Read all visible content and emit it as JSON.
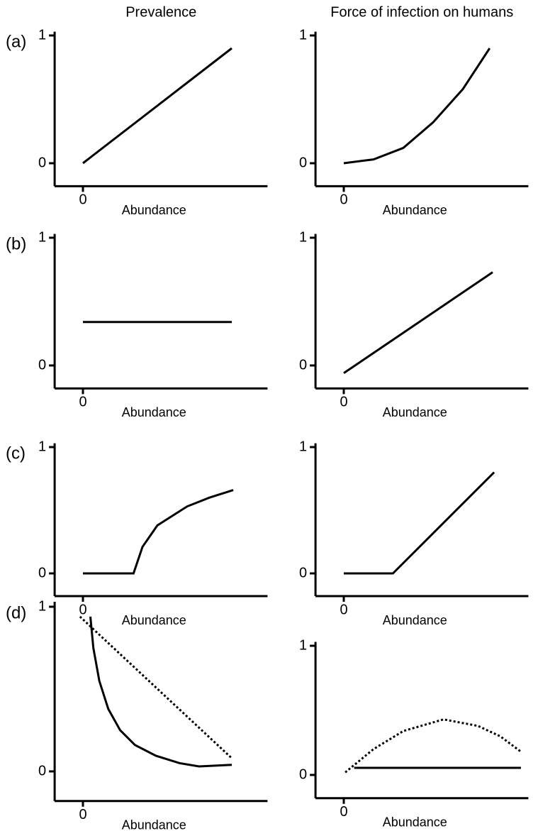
{
  "chart_data": [
    {
      "type": "line",
      "title": "Prevalence",
      "panel_label": "(a)",
      "xlabel": "Abundance",
      "xlim": [
        -0.19,
        1.24
      ],
      "ylim": [
        -0.18,
        1.03
      ],
      "xticks": [
        0
      ],
      "yticks": [
        0,
        1
      ],
      "series": [
        {
          "x": [
            0,
            1
          ],
          "values": [
            0,
            0.9
          ],
          "color": "#000000",
          "style": "solid"
        }
      ]
    },
    {
      "type": "line",
      "title": "Force of infection on humans",
      "xlabel": "Abundance",
      "xlim": [
        -0.19,
        1.24
      ],
      "ylim": [
        -0.18,
        1.03
      ],
      "xticks": [
        0
      ],
      "yticks": [
        0,
        1
      ],
      "series": [
        {
          "x": [
            0,
            0.2,
            0.4,
            0.6,
            0.8,
            0.98
          ],
          "values": [
            0,
            0.03,
            0.12,
            0.32,
            0.58,
            0.9
          ],
          "color": "#000000",
          "style": "solid"
        }
      ]
    },
    {
      "type": "line",
      "panel_label": "(b)",
      "xlabel": "Abundance",
      "xlim": [
        -0.19,
        1.24
      ],
      "ylim": [
        -0.18,
        1.03
      ],
      "xticks": [
        0
      ],
      "yticks": [
        0,
        1
      ],
      "series": [
        {
          "x": [
            0,
            1
          ],
          "values": [
            0.34,
            0.34
          ],
          "color": "#000000",
          "style": "solid"
        }
      ]
    },
    {
      "type": "line",
      "xlabel": "Abundance",
      "xlim": [
        -0.19,
        1.24
      ],
      "ylim": [
        -0.18,
        1.03
      ],
      "xticks": [
        0
      ],
      "yticks": [
        0,
        1
      ],
      "series": [
        {
          "x": [
            0,
            1
          ],
          "values": [
            -0.06,
            0.73
          ],
          "color": "#000000",
          "style": "solid"
        }
      ]
    },
    {
      "type": "line",
      "panel_label": "(c)",
      "xlabel": "Abundance",
      "xlim": [
        -0.19,
        1.24
      ],
      "ylim": [
        -0.18,
        1.03
      ],
      "xticks": [
        0
      ],
      "yticks": [
        0,
        1
      ],
      "series": [
        {
          "x": [
            0,
            0.34,
            0.4,
            0.5,
            0.7,
            0.85,
            1.01
          ],
          "values": [
            0,
            0,
            0.21,
            0.38,
            0.53,
            0.6,
            0.66
          ],
          "color": "#000000",
          "style": "solid"
        }
      ]
    },
    {
      "type": "line",
      "xlabel": "Abundance",
      "xlim": [
        -0.19,
        1.24
      ],
      "ylim": [
        -0.18,
        1.03
      ],
      "xticks": [
        0
      ],
      "yticks": [
        0,
        1
      ],
      "series": [
        {
          "x": [
            0,
            0.33,
            1.01
          ],
          "values": [
            0,
            0,
            0.8
          ],
          "color": "#000000",
          "style": "solid"
        }
      ]
    },
    {
      "type": "line",
      "panel_label": "(d)",
      "xlabel": "Abundance",
      "xlim": [
        -0.19,
        1.24
      ],
      "ylim": [
        -0.18,
        1.03
      ],
      "xticks": [
        0
      ],
      "yticks": [
        0,
        1
      ],
      "series": [
        {
          "x": [
            0.05,
            0.07,
            0.11,
            0.17,
            0.25,
            0.35,
            0.49,
            0.65,
            0.78,
            1.0
          ],
          "values": [
            0.94,
            0.75,
            0.55,
            0.38,
            0.25,
            0.16,
            0.095,
            0.05,
            0.03,
            0.04
          ],
          "color": "#000000",
          "style": "solid"
        },
        {
          "x": [
            -0.02,
            1.0
          ],
          "values": [
            0.94,
            0.08
          ],
          "color": "#000000",
          "style": "dotted"
        }
      ]
    },
    {
      "type": "line",
      "xlabel": "Abundance",
      "xlim": [
        -0.19,
        1.24
      ],
      "ylim": [
        -0.18,
        1.03
      ],
      "xticks": [
        0
      ],
      "yticks": [
        0,
        1
      ],
      "series": [
        {
          "x": [
            0.07,
            1.19
          ],
          "values": [
            0.055,
            0.055
          ],
          "color": "#000000",
          "style": "solid"
        },
        {
          "x": [
            0.01,
            0.2,
            0.4,
            0.67,
            0.9,
            1.05,
            1.19
          ],
          "values": [
            0.02,
            0.2,
            0.34,
            0.43,
            0.38,
            0.3,
            0.18
          ],
          "color": "#000000",
          "style": "dotted"
        }
      ]
    }
  ]
}
